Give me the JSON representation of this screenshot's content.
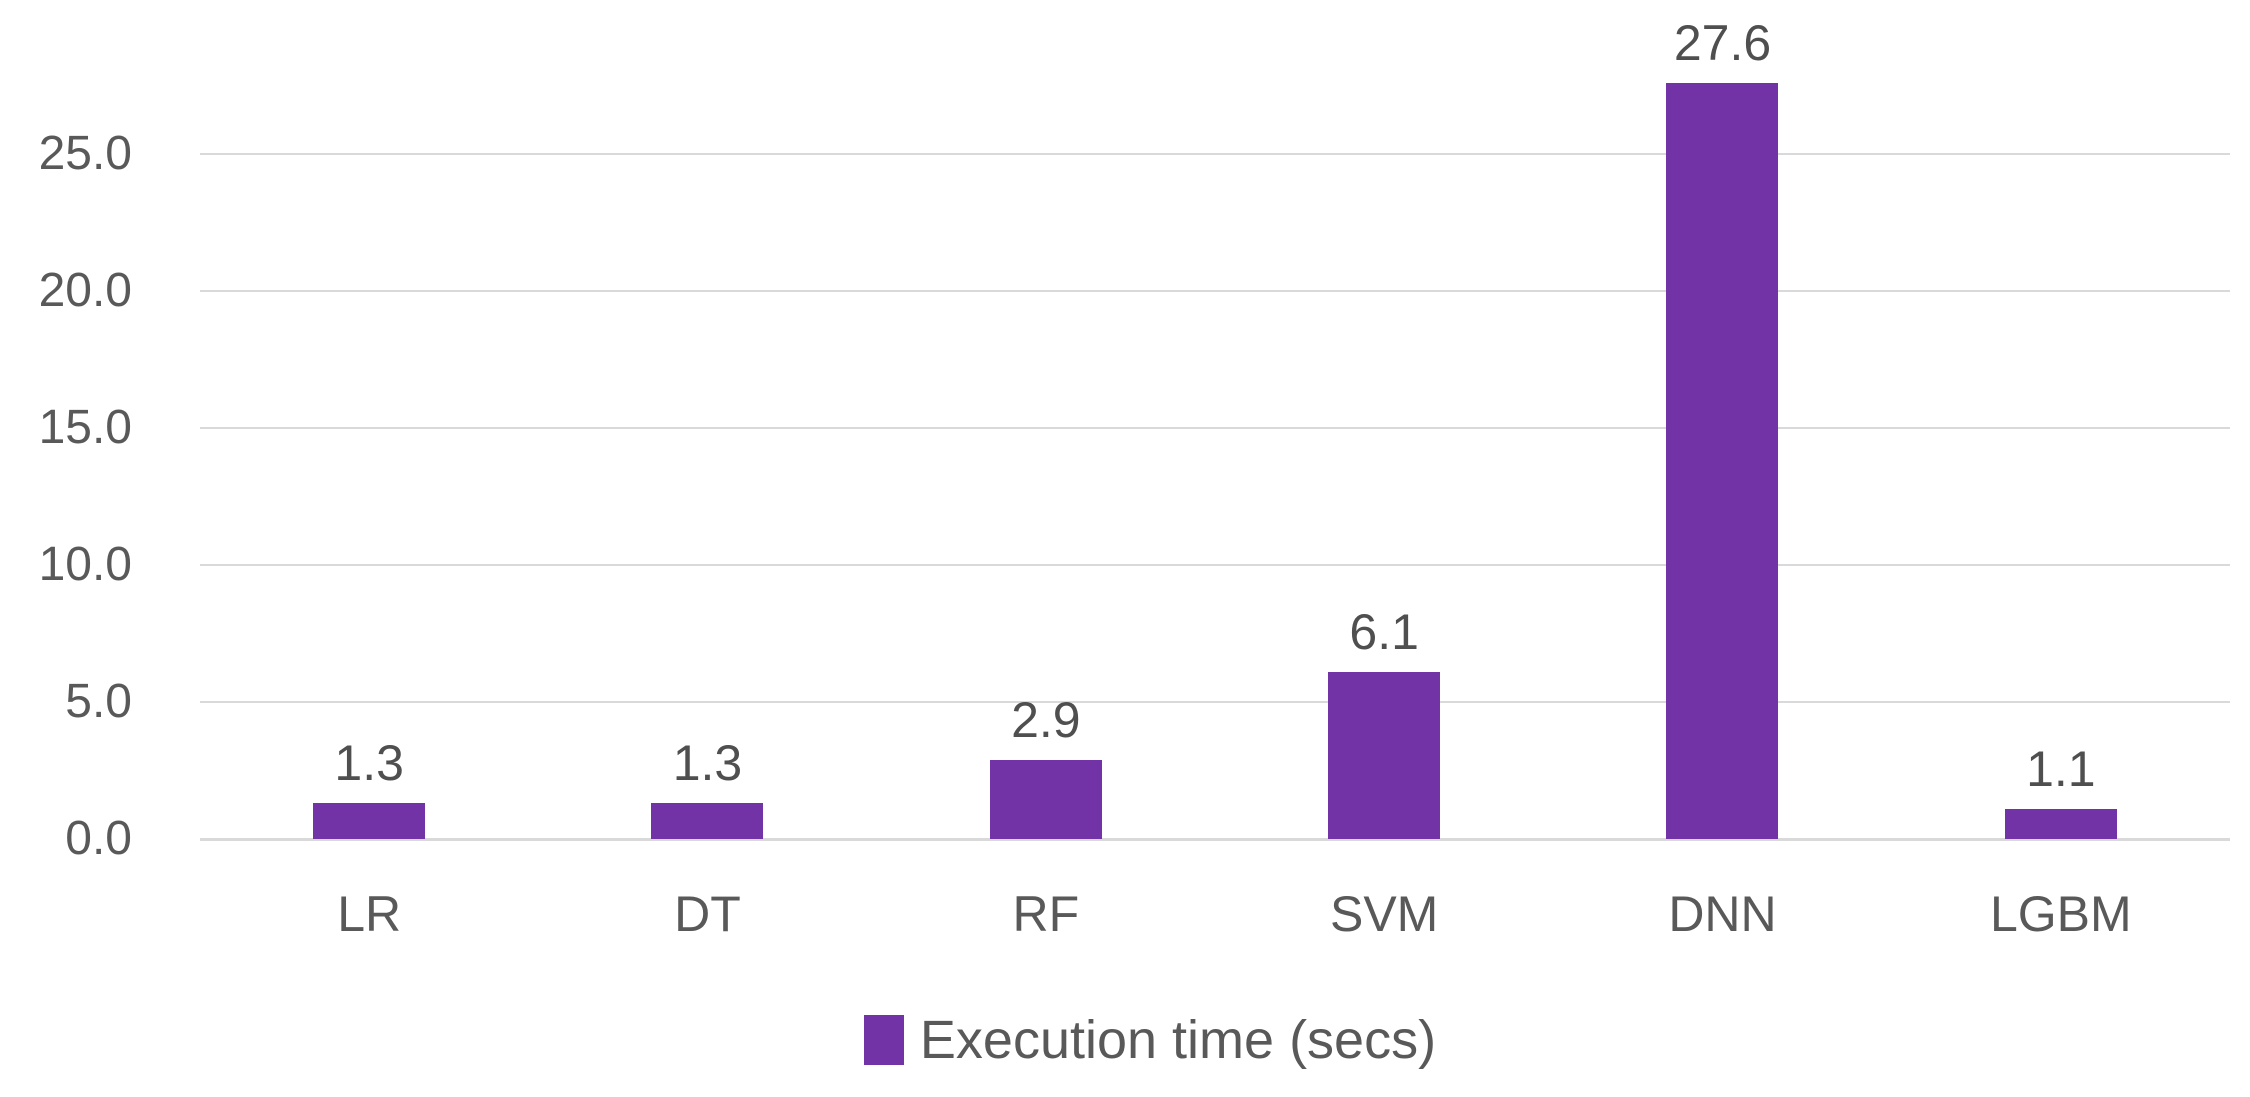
{
  "chart_data": {
    "type": "bar",
    "title": "",
    "xlabel": "",
    "ylabel": "",
    "categories": [
      "LR",
      "DT",
      "RF",
      "SVM",
      "DNN",
      "LGBM"
    ],
    "series": [
      {
        "name": "Execution time (secs)",
        "values": [
          1.3,
          1.3,
          2.9,
          6.1,
          27.6,
          1.1
        ]
      }
    ],
    "data_labels": [
      "1.3",
      "1.3",
      "2.9",
      "6.1",
      "27.6",
      "1.1"
    ],
    "y_ticks": [
      {
        "value": 0,
        "label": "0.0"
      },
      {
        "value": 5,
        "label": "5.0"
      },
      {
        "value": 10,
        "label": "10.0"
      },
      {
        "value": 15,
        "label": "15.0"
      },
      {
        "value": 20,
        "label": "20.0"
      },
      {
        "value": 25,
        "label": "25.0"
      }
    ],
    "ylim": [
      0,
      27.6
    ],
    "grid": true,
    "legend": {
      "label": "Execution time (secs)",
      "position": "bottom-center"
    },
    "colors": {
      "bar": "#7133A6",
      "gridline": "#D9D9D9",
      "axis_text": "#595959",
      "value_text": "#4F4F4F",
      "background": "#FFFFFF"
    }
  }
}
